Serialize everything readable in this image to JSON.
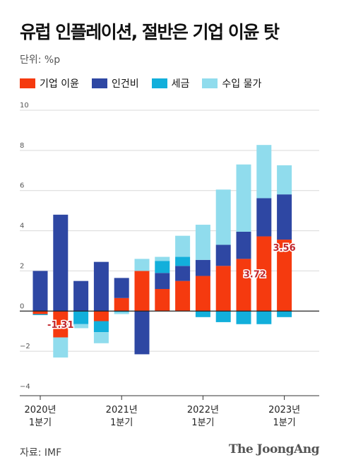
{
  "title": "유럽 인플레이션, 절반은 기업 이윤 탓",
  "unit": "단위: %p",
  "legend": [
    {
      "label": "기업 이윤",
      "color": "#f53a0f"
    },
    {
      "label": "인건비",
      "color": "#2e47a3"
    },
    {
      "label": "세금",
      "color": "#12afdb"
    },
    {
      "label": "수입 물가",
      "color": "#90dced"
    }
  ],
  "source": "자료: IMF",
  "brand": "The JoongAng",
  "chart_data": {
    "type": "bar",
    "stacked": true,
    "ylim": [
      -4,
      10
    ],
    "yticks": [
      -4,
      -2,
      0,
      2,
      4,
      6,
      8,
      10
    ],
    "x_labels": [
      {
        "index": 0,
        "line1": "2020년",
        "line2": "1분기"
      },
      {
        "index": 4,
        "line1": "2021년",
        "line2": "1분기"
      },
      {
        "index": 8,
        "line1": "2022년",
        "line2": "1분기"
      },
      {
        "index": 12,
        "line1": "2023년",
        "line2": "1분기"
      }
    ],
    "categories": [
      "2020 Q1",
      "2020 Q2",
      "2020 Q3",
      "2020 Q4",
      "2021 Q1",
      "2021 Q2",
      "2021 Q3",
      "2021 Q4",
      "2022 Q1",
      "2022 Q2",
      "2022 Q3",
      "2022 Q4",
      "2023 Q1"
    ],
    "series": [
      {
        "name": "기업 이윤",
        "color": "#f53a0f",
        "values": [
          -0.15,
          -1.31,
          0,
          -0.5,
          0.65,
          2.0,
          1.1,
          1.5,
          1.75,
          2.25,
          2.6,
          3.72,
          3.56
        ]
      },
      {
        "name": "인건비",
        "color": "#2e47a3",
        "values": [
          2.0,
          4.8,
          1.5,
          2.45,
          1.0,
          -2.15,
          0.8,
          0.75,
          0.8,
          1.05,
          1.35,
          1.9,
          2.25
        ]
      },
      {
        "name": "세금",
        "color": "#12afdb",
        "values": [
          -0.05,
          0,
          -0.65,
          -0.55,
          -0.05,
          0,
          0.6,
          0.45,
          -0.3,
          -0.55,
          -0.65,
          -0.65,
          -0.3
        ]
      },
      {
        "name": "수입 물가",
        "color": "#90dced",
        "values": [
          0,
          -1.0,
          -0.2,
          -0.55,
          -0.1,
          0.6,
          0.2,
          1.05,
          1.75,
          2.75,
          3.35,
          2.65,
          1.45
        ]
      }
    ],
    "annotations": [
      {
        "index": 1,
        "label": "-1.31",
        "value": -1.31
      },
      {
        "index": 11,
        "label": "3.72",
        "value": 3.72
      },
      {
        "index": 12,
        "label": "3.56",
        "value": 3.56
      }
    ]
  }
}
